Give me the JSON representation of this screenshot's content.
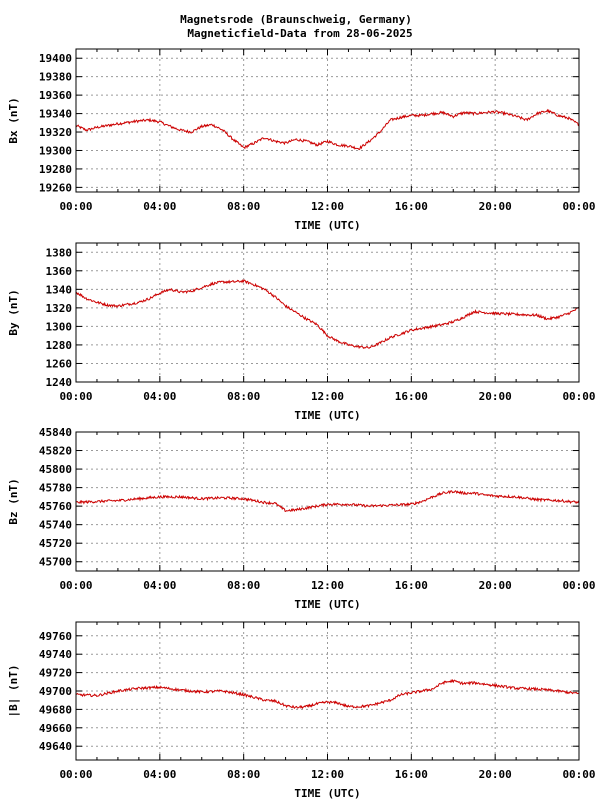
{
  "title": "Magnetsrode (Braunschweig, Germany)",
  "subtitle": "Magneticfield-Data from 28-06-2025",
  "colors": {
    "series": "#cc0000",
    "grid": "#9a9a9a",
    "axis": "#000000"
  },
  "chart_data": [
    {
      "type": "line",
      "ylabel": "Bx (nT)",
      "xlabel": "TIME (UTC)",
      "xlim": [
        0,
        24
      ],
      "xticks": [
        "00:00",
        "04:00",
        "08:00",
        "12:00",
        "16:00",
        "20:00",
        "00:00"
      ],
      "ylim": [
        19255,
        19410
      ],
      "yticks": [
        19260,
        19280,
        19300,
        19320,
        19340,
        19360,
        19380,
        19400
      ],
      "grid": true,
      "series": [
        {
          "x": [
            0,
            0.5,
            1,
            2,
            3,
            3.5,
            4,
            4.5,
            5,
            5.5,
            6,
            6.5,
            7,
            7.5,
            8,
            8.5,
            9,
            9.5,
            10,
            10.5,
            11,
            11.5,
            12,
            12.5,
            13,
            13.5,
            14,
            14.5,
            15,
            15.5,
            16,
            16.5,
            17,
            17.5,
            18,
            18.5,
            19,
            19.5,
            20,
            20.5,
            21,
            21.5,
            22,
            22.5,
            23,
            23.5,
            24
          ],
          "y": [
            19327,
            19322,
            19325,
            19329,
            19332,
            19333,
            19331,
            19326,
            19322,
            19320,
            19326,
            19328,
            19322,
            19312,
            19303,
            19308,
            19314,
            19310,
            19308,
            19312,
            19310,
            19306,
            19310,
            19306,
            19305,
            19302,
            19310,
            19320,
            19333,
            19336,
            19338,
            19338,
            19340,
            19341,
            19337,
            19341,
            19340,
            19341,
            19342,
            19340,
            19337,
            19333,
            19340,
            19343,
            19338,
            19335,
            19328
          ]
        }
      ]
    },
    {
      "type": "line",
      "ylabel": "By (nT)",
      "xlabel": "TIME (UTC)",
      "xlim": [
        0,
        24
      ],
      "xticks": [
        "00:00",
        "04:00",
        "08:00",
        "12:00",
        "16:00",
        "20:00",
        "00:00"
      ],
      "ylim": [
        1240,
        1390
      ],
      "yticks": [
        1240,
        1260,
        1280,
        1300,
        1320,
        1340,
        1360,
        1380
      ],
      "grid": true,
      "series": [
        {
          "x": [
            0,
            0.5,
            1,
            1.5,
            2,
            3,
            3.5,
            4,
            4.5,
            5,
            5.5,
            6,
            6.5,
            7,
            7.5,
            8,
            8.5,
            9,
            9.5,
            10,
            10.5,
            11,
            11.5,
            12,
            12.5,
            13,
            13.5,
            14,
            14.5,
            15,
            15.5,
            16,
            16.5,
            17,
            17.5,
            18,
            18.5,
            19,
            19.5,
            20,
            21,
            22,
            22.5,
            23,
            23.5,
            24
          ],
          "y": [
            1337,
            1330,
            1326,
            1323,
            1322,
            1326,
            1330,
            1336,
            1340,
            1337,
            1338,
            1342,
            1346,
            1348,
            1348,
            1349,
            1345,
            1340,
            1332,
            1322,
            1315,
            1308,
            1302,
            1290,
            1284,
            1280,
            1278,
            1277,
            1282,
            1288,
            1292,
            1296,
            1298,
            1300,
            1302,
            1305,
            1310,
            1316,
            1315,
            1314,
            1313,
            1312,
            1308,
            1310,
            1314,
            1320
          ]
        }
      ]
    },
    {
      "type": "line",
      "ylabel": "Bz (nT)",
      "xlabel": "TIME (UTC)",
      "xlim": [
        0,
        24
      ],
      "xticks": [
        "00:00",
        "04:00",
        "08:00",
        "12:00",
        "16:00",
        "20:00",
        "00:00"
      ],
      "ylim": [
        45690,
        45840
      ],
      "yticks": [
        45700,
        45720,
        45740,
        45760,
        45780,
        45800,
        45820,
        45840
      ],
      "grid": true,
      "series": [
        {
          "x": [
            0,
            1,
            2,
            3,
            4,
            5,
            6,
            7,
            8,
            9,
            9.5,
            10,
            10.5,
            11,
            12,
            13,
            14,
            15,
            16,
            16.5,
            17,
            17.5,
            18,
            18.5,
            19,
            19.5,
            20,
            21,
            22,
            23,
            24
          ],
          "y": [
            45764,
            45765,
            45766,
            45768,
            45770,
            45770,
            45768,
            45769,
            45768,
            45764,
            45763,
            45755,
            45756,
            45758,
            45762,
            45762,
            45760,
            45761,
            45762,
            45765,
            45770,
            45774,
            45776,
            45774,
            45774,
            45772,
            45771,
            45770,
            45767,
            45766,
            45764
          ]
        }
      ]
    },
    {
      "type": "line",
      "ylabel": "|B| (nT)",
      "xlabel": "TIME (UTC)",
      "xlim": [
        0,
        24
      ],
      "xticks": [
        "00:00",
        "04:00",
        "08:00",
        "12:00",
        "16:00",
        "20:00",
        "00:00"
      ],
      "ylim": [
        49625,
        49775
      ],
      "yticks": [
        49640,
        49660,
        49680,
        49700,
        49720,
        49740,
        49760
      ],
      "grid": true,
      "series": [
        {
          "x": [
            0,
            1,
            2,
            3,
            4,
            5,
            6,
            7,
            8,
            9,
            9.5,
            10,
            10.5,
            11,
            11.5,
            12,
            12.5,
            13,
            13.5,
            14,
            15,
            15.5,
            16,
            17,
            17.5,
            18,
            18.5,
            19,
            20,
            21,
            22,
            23,
            24
          ],
          "y": [
            49696,
            49695,
            49700,
            49703,
            49704,
            49701,
            49699,
            49700,
            49696,
            49690,
            49689,
            49684,
            49682,
            49683,
            49686,
            49688,
            49687,
            49683,
            49683,
            49684,
            49690,
            49696,
            49698,
            49702,
            49709,
            49711,
            49708,
            49709,
            49706,
            49703,
            49702,
            49700,
            49697
          ]
        }
      ]
    }
  ]
}
